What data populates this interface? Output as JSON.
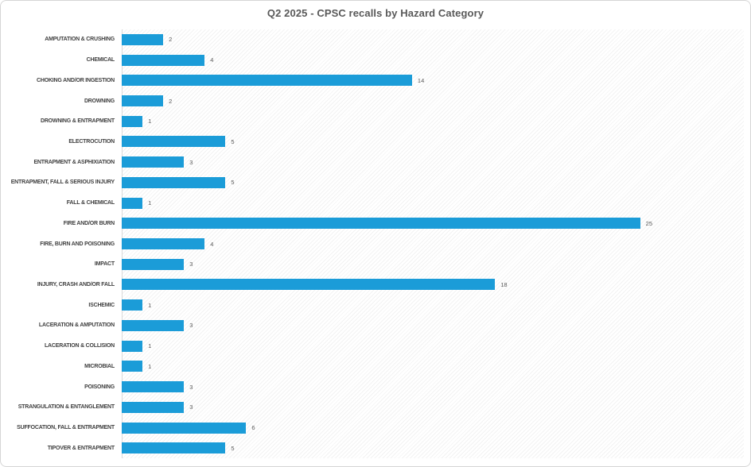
{
  "title": "Q2 2025 - CPSC recalls by Hazard Category",
  "colors": {
    "bar": "#1b9cd8",
    "title_text": "#595959",
    "category_text": "#404040",
    "value_text": "#595959",
    "axis_line": "#d9d9d9",
    "border": "#d6d6d6"
  },
  "chart_data": {
    "type": "bar",
    "orientation": "horizontal",
    "title": "Q2 2025 - CPSC recalls by Hazard Category",
    "categories": [
      "AMPUTATION & CRUSHING",
      "CHEMICAL",
      "CHOKING AND/OR INGESTION",
      "DROWNING",
      "DROWNING & ENTRAPMENT",
      "ELECTROCUTION",
      "ENTRAPMENT & ASPHIXIATION",
      "ENTRAPMENT, FALL & SERIOUS INJURY",
      "FALL & CHEMICAL",
      "FIRE AND/OR BURN",
      "FIRE, BURN AND POISONING",
      "IMPACT",
      "INJURY, CRASH AND/OR FALL",
      "ISCHEMIC",
      "LACERATION & AMPUTATION",
      "LACERATION & COLLISION",
      "MICROBIAL",
      "POISONING",
      "STRANGULATION & ENTANGLEMENT",
      "SUFFOCATION, FALL & ENTRAPMENT",
      "TIPOVER & ENTRAPMENT"
    ],
    "values": [
      2,
      4,
      14,
      2,
      1,
      5,
      3,
      5,
      1,
      25,
      4,
      3,
      18,
      1,
      3,
      1,
      1,
      3,
      3,
      6,
      5
    ],
    "xlabel": "",
    "ylabel": "",
    "xlim": [
      0,
      30
    ],
    "grid": false,
    "legend": false,
    "value_labels": true
  }
}
